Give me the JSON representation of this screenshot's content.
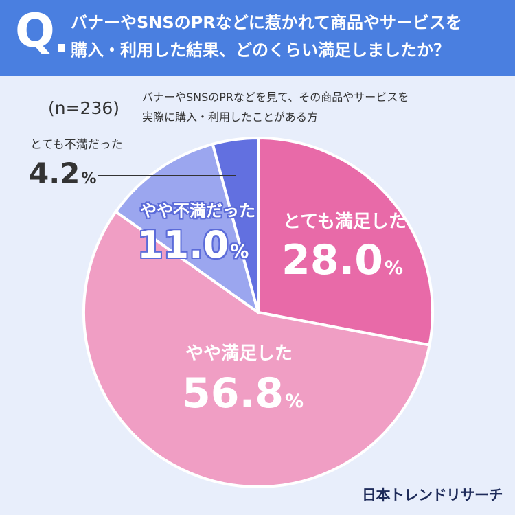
{
  "header": {
    "q_letter": "Q",
    "question_line1": "バナーやSNSのPRなどに惹かれて商品やサービスを",
    "question_line2": "購入・利用した結果、どのくらい満足しましたか？",
    "background": "#4a7fe0"
  },
  "sample": {
    "n_label": "(n=236)",
    "description_line1": "バナーやSNSのPRなどを見て、その商品やサービスを",
    "description_line2": "実際に購入・利用したことがある方"
  },
  "chart_data": {
    "type": "pie",
    "start": "12 o'clock, clockwise",
    "slices": [
      {
        "label": "とても満足した",
        "value": 28.0,
        "display": "28.0",
        "color": "#e86aa8"
      },
      {
        "label": "やや満足した",
        "value": 56.8,
        "display": "56.8",
        "color": "#f09ec4"
      },
      {
        "label": "やや不満だった",
        "value": 11.0,
        "display": "11.0",
        "color": "#9ba6ef"
      },
      {
        "label": "とても不満だった",
        "value": 4.2,
        "display": "4.2",
        "color": "#6270e0"
      }
    ],
    "unit": "%"
  },
  "footer": {
    "logo": "日本トレンドリサーチ"
  }
}
